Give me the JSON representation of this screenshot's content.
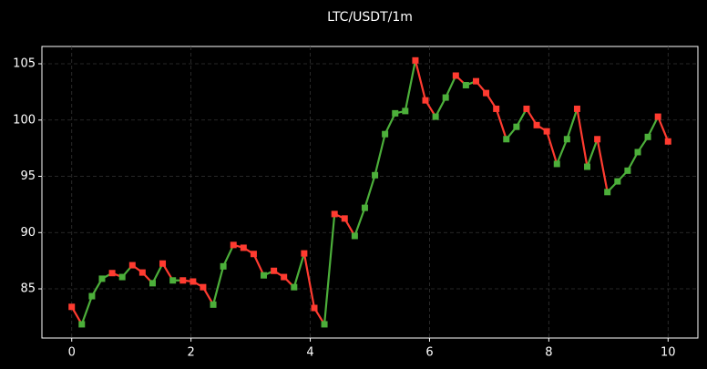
{
  "chart_data": {
    "type": "line",
    "title": "LTC/USDT/1m",
    "x": [
      0,
      0.169,
      0.339,
      0.508,
      0.678,
      0.847,
      1.017,
      1.186,
      1.356,
      1.525,
      1.695,
      1.864,
      2.034,
      2.203,
      2.373,
      2.542,
      2.712,
      2.881,
      3.051,
      3.22,
      3.39,
      3.559,
      3.729,
      3.898,
      4.068,
      4.237,
      4.407,
      4.576,
      4.746,
      4.915,
      5.085,
      5.254,
      5.424,
      5.593,
      5.763,
      5.932,
      6.102,
      6.271,
      6.441,
      6.61,
      6.78,
      6.949,
      7.119,
      7.288,
      7.458,
      7.627,
      7.797,
      7.966,
      8.136,
      8.305,
      8.475,
      8.644,
      8.814,
      8.983,
      9.153,
      9.322,
      9.492,
      9.661,
      9.831,
      10
    ],
    "values": [
      83.4,
      81.85,
      84.35,
      85.9,
      86.4,
      86.05,
      87.1,
      86.45,
      85.5,
      87.25,
      85.75,
      85.75,
      85.65,
      85.15,
      83.6,
      87.0,
      88.9,
      88.65,
      88.1,
      86.2,
      86.6,
      86.05,
      85.15,
      88.15,
      83.3,
      81.85,
      91.65,
      91.25,
      89.7,
      92.2,
      95.1,
      98.75,
      100.6,
      100.8,
      105.3,
      101.75,
      100.3,
      102.0,
      103.95,
      103.1,
      103.45,
      102.4,
      101.0,
      98.3,
      99.4,
      101.0,
      99.55,
      99.0,
      96.1,
      98.3,
      101.0,
      95.85,
      98.3,
      93.6,
      94.55,
      95.5,
      97.15,
      98.5,
      100.3,
      98.1
    ],
    "up_color": "#4caf3a",
    "down_color": "#ff3b30",
    "xlim": [
      -0.5,
      10.5
    ],
    "xticks": [
      0,
      2,
      4,
      6,
      8,
      10
    ],
    "ylim": [
      80.63,
      106.54
    ],
    "yticks": [
      85,
      90,
      95,
      100,
      105
    ],
    "grid": true
  }
}
